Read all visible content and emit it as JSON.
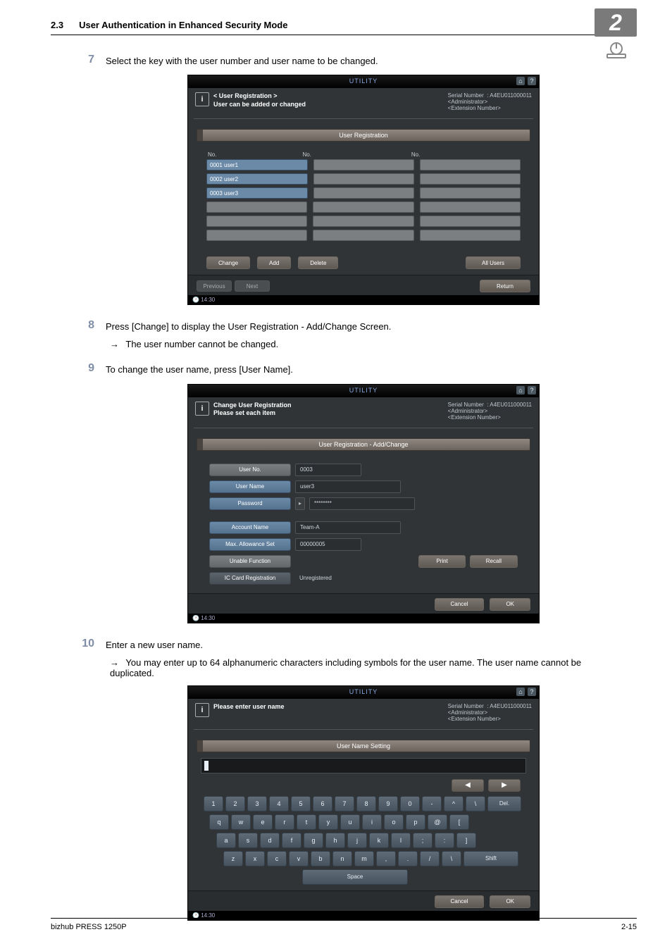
{
  "page": {
    "section_number": "2.3",
    "section_title": "User Authentication in Enhanced Security Mode",
    "chapter_badge": "2",
    "footer_left": "bizhub PRESS 1250P",
    "footer_right": "2-15"
  },
  "steps": {
    "s7": {
      "num": "7",
      "text": "Select the key with the user number and user name to be changed."
    },
    "s8": {
      "num": "8",
      "text": "Press [Change] to display the User Registration - Add/Change Screen.",
      "bullet": "The user number cannot be changed."
    },
    "s9": {
      "num": "9",
      "text": "To change the user name, press [User Name]."
    },
    "s10": {
      "num": "10",
      "text": "Enter a new user name.",
      "bullet": "You may enter up to 64 alphanumeric characters including symbols for the user name. The user name cannot be duplicated."
    }
  },
  "panel_common": {
    "utility_label": "UTILITY",
    "serial_label": "Serial Number",
    "serial_value": ": A4EU011000011",
    "admin_line": "<Administrator>",
    "ext_line": "<Extension Number>",
    "time": "14:30",
    "return_btn": "Return",
    "cancel_btn": "Cancel",
    "ok_btn": "OK",
    "previous": "Previous",
    "next": "Next"
  },
  "panel1": {
    "head_msg_l1": "< User Registration >",
    "head_msg_l2": "User can be added or changed",
    "section_bar": "User Registration",
    "col_no": "No.",
    "users": [
      {
        "label": "0001 user1"
      },
      {
        "label": "0002 user2"
      },
      {
        "label": "0003 user3"
      }
    ],
    "btn_change": "Change",
    "btn_add": "Add",
    "btn_delete": "Delete",
    "btn_allusers": "All Users"
  },
  "panel2": {
    "head_msg_l1": "Change User Registration",
    "head_msg_l2": "Please set each item",
    "section_bar": "User Registration - Add/Change",
    "label_userno": "User No.",
    "val_userno": "0003",
    "label_username": "User Name",
    "val_username": "user3",
    "label_password": "Password",
    "val_password": "********",
    "label_account": "Account Name",
    "val_account": "Team-A",
    "label_maxallow": "Max. Allowance Set",
    "val_maxallow": "00000005",
    "label_unablefn": "Unable Function",
    "btn_print": "Print",
    "btn_recall": "Recall",
    "label_iccard": "IC Card Registration",
    "val_iccard": "Unregistered"
  },
  "panel3": {
    "head_msg": "Please enter user name",
    "section_bar": "User Name Setting",
    "del": "Del.",
    "shift": "Shift",
    "space": "Space",
    "rows": {
      "r1": [
        "1",
        "2",
        "3",
        "4",
        "5",
        "6",
        "7",
        "8",
        "9",
        "0",
        "-",
        "^",
        "\\"
      ],
      "r2": [
        "q",
        "w",
        "e",
        "r",
        "t",
        "y",
        "u",
        "i",
        "o",
        "p",
        "@",
        "["
      ],
      "r3": [
        "a",
        "s",
        "d",
        "f",
        "g",
        "h",
        "j",
        "k",
        "l",
        ";",
        ":",
        "]"
      ],
      "r4": [
        "z",
        "x",
        "c",
        "v",
        "b",
        "n",
        "m",
        ",",
        ".",
        "/",
        "\\"
      ]
    }
  },
  "colors": {
    "step_num": "#7f8ea6",
    "panel_bg": "#303437",
    "blue_btn": "#6b8aa8",
    "olive_btn_top": "#7b756f",
    "olive_btn_bot": "#5f5953"
  }
}
